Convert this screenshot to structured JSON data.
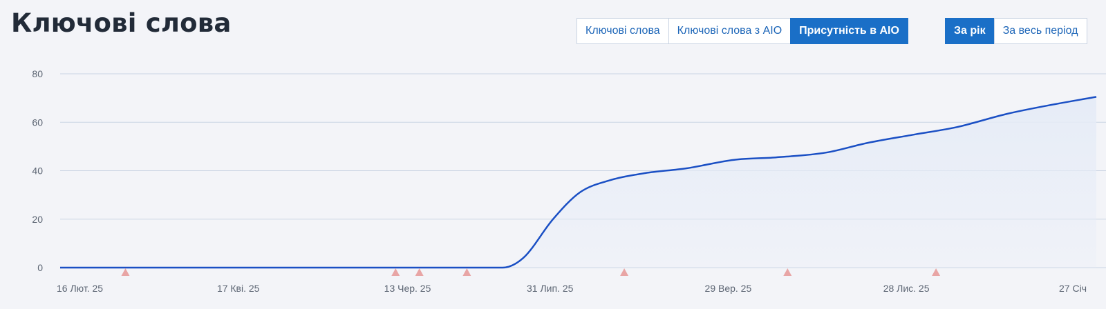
{
  "header": {
    "title": "Ключові слова"
  },
  "metric_tabs": [
    {
      "label": "Ключові слова",
      "active": false
    },
    {
      "label": "Ключові слова з AIO",
      "active": false
    },
    {
      "label": "Присутність в AIO",
      "active": true
    }
  ],
  "period_tabs": [
    {
      "label": "За рік",
      "active": true
    },
    {
      "label": "За весь період",
      "active": false
    }
  ],
  "colors": {
    "line": "#1a4fc4",
    "area": "#e6ecf7",
    "grid": "#c9d3e3",
    "marker": "#e8a5a5",
    "active_tab": "#1a6fc7"
  },
  "chart_data": {
    "type": "area",
    "x_unit": "date",
    "x_range": [
      "2025-02-16",
      "2026-01-31"
    ],
    "ylim": [
      0,
      80
    ],
    "yticks": [
      0,
      20,
      40,
      60,
      80
    ],
    "grid": true,
    "xticks": [
      {
        "date": "2025-02-16",
        "label": "16 Лют. 25"
      },
      {
        "date": "2025-04-17",
        "label": "17 Кві. 25"
      },
      {
        "date": "2025-06-13",
        "label": "13 Чер. 25"
      },
      {
        "date": "2025-07-31",
        "label": "31 Лип. 25"
      },
      {
        "date": "2025-09-29",
        "label": "29 Вер. 25"
      },
      {
        "date": "2025-11-28",
        "label": "28 Лис. 25"
      },
      {
        "date": "2026-01-27",
        "label": "27 Січ"
      }
    ],
    "series": [
      {
        "x": [
          "2025-02-16",
          "2025-04-01",
          "2025-06-01",
          "2025-07-15",
          "2025-07-22",
          "2025-08-01",
          "2025-08-10",
          "2025-08-20",
          "2025-09-01",
          "2025-09-15",
          "2025-10-01",
          "2025-10-15",
          "2025-11-01",
          "2025-11-15",
          "2025-12-01",
          "2025-12-15",
          "2026-01-01",
          "2026-01-15",
          "2026-01-31"
        ],
        "y": [
          0,
          0,
          0,
          0,
          4,
          20,
          31,
          36,
          39,
          41,
          44.5,
          45.5,
          47.5,
          51.5,
          55,
          58,
          63.5,
          67,
          70.5
        ]
      }
    ],
    "markers": [
      "2025-03-10",
      "2025-06-09",
      "2025-06-17",
      "2025-07-03",
      "2025-08-25",
      "2025-10-19",
      "2025-12-08"
    ]
  }
}
